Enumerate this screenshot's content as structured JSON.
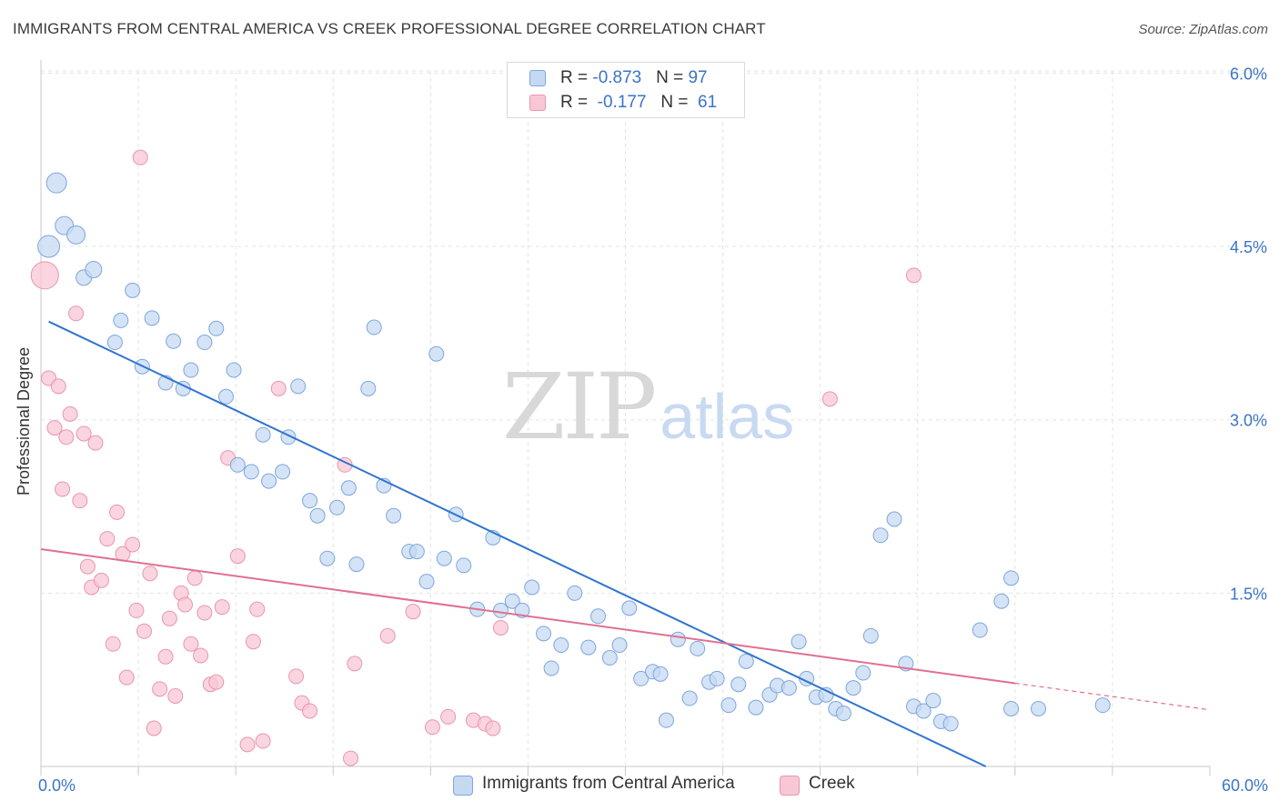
{
  "header": {
    "title": "IMMIGRANTS FROM CENTRAL AMERICA VS CREEK PROFESSIONAL DEGREE CORRELATION CHART",
    "source": "Source: ZipAtlas.com"
  },
  "watermark": {
    "zip": "ZIP",
    "atlas": "atlas"
  },
  "legend_top": [
    {
      "r_label": "R = ",
      "r_value": "-0.873",
      "n_label": "N = ",
      "n_value": "97"
    },
    {
      "r_label": "R = ",
      "r_value": " -0.177",
      "n_label": "N = ",
      "n_value": " 61"
    }
  ],
  "colors": {
    "blue_fill": "#c5d9f3",
    "blue_stroke": "#7ea6dc",
    "blue_line": "#2e74d0",
    "pink_fill": "#f8c7d6",
    "pink_stroke": "#e995b0",
    "pink_line": "#e0708f",
    "axis_label": "#3a74c9",
    "grid": "#e3e3e3"
  },
  "chart_data": {
    "type": "scatter",
    "title": "IMMIGRANTS FROM CENTRAL AMERICA VS CREEK PROFESSIONAL DEGREE CORRELATION CHART",
    "xlabel": "",
    "ylabel": "Professional Degree",
    "xlim": [
      0,
      60
    ],
    "ylim": [
      0,
      6.25
    ],
    "x_tick_labels": [
      "0.0%",
      "60.0%"
    ],
    "y_ticks": [
      1.5,
      3.0,
      4.5,
      6.0
    ],
    "y_tick_labels": [
      "1.5%",
      "3.0%",
      "4.5%",
      "6.0%"
    ],
    "grid": true,
    "legend_position": "bottom",
    "series": [
      {
        "name": "Immigrants from Central America",
        "r": -0.873,
        "n": 97,
        "trend": {
          "x": [
            0.4,
            48.5
          ],
          "y": [
            3.85,
            0.0
          ]
        },
        "points": [
          [
            0.4,
            4.5,
            24
          ],
          [
            0.8,
            5.05,
            22
          ],
          [
            1.2,
            4.68,
            20
          ],
          [
            1.8,
            4.6,
            20
          ],
          [
            2.2,
            4.23,
            17
          ],
          [
            2.7,
            4.3,
            18
          ],
          [
            3.8,
            3.67,
            16
          ],
          [
            4.1,
            3.86,
            16
          ],
          [
            4.7,
            4.12,
            16
          ],
          [
            5.2,
            3.46,
            16
          ],
          [
            5.7,
            3.88,
            16
          ],
          [
            6.4,
            3.32,
            16
          ],
          [
            6.8,
            3.68,
            16
          ],
          [
            7.3,
            3.27,
            16
          ],
          [
            7.7,
            3.43,
            16
          ],
          [
            8.4,
            3.67,
            16
          ],
          [
            9.0,
            3.79,
            16
          ],
          [
            9.5,
            3.2,
            16
          ],
          [
            9.9,
            3.43,
            16
          ],
          [
            10.1,
            2.61,
            16
          ],
          [
            10.8,
            2.55,
            16
          ],
          [
            11.4,
            2.87,
            16
          ],
          [
            11.7,
            2.47,
            16
          ],
          [
            12.4,
            2.55,
            16
          ],
          [
            12.7,
            2.85,
            16
          ],
          [
            13.2,
            3.29,
            16
          ],
          [
            13.8,
            2.3,
            16
          ],
          [
            14.2,
            2.17,
            16
          ],
          [
            14.7,
            1.8,
            16
          ],
          [
            15.2,
            2.24,
            16
          ],
          [
            15.8,
            2.41,
            16
          ],
          [
            16.2,
            1.75,
            16
          ],
          [
            16.8,
            3.27,
            16
          ],
          [
            17.1,
            3.8,
            16
          ],
          [
            17.6,
            2.43,
            16
          ],
          [
            18.1,
            2.17,
            16
          ],
          [
            18.9,
            1.86,
            16
          ],
          [
            19.3,
            1.86,
            16
          ],
          [
            19.8,
            1.6,
            16
          ],
          [
            20.3,
            3.57,
            16
          ],
          [
            20.7,
            1.8,
            16
          ],
          [
            21.3,
            2.18,
            16
          ],
          [
            21.7,
            1.74,
            16
          ],
          [
            22.4,
            1.36,
            16
          ],
          [
            23.2,
            1.98,
            16
          ],
          [
            23.6,
            1.35,
            16
          ],
          [
            24.2,
            1.43,
            16
          ],
          [
            24.7,
            1.35,
            16
          ],
          [
            25.2,
            1.55,
            16
          ],
          [
            25.8,
            1.15,
            16
          ],
          [
            26.2,
            0.85,
            16
          ],
          [
            26.7,
            1.05,
            16
          ],
          [
            27.4,
            1.5,
            16
          ],
          [
            28.1,
            1.03,
            16
          ],
          [
            28.6,
            1.3,
            16
          ],
          [
            29.2,
            0.94,
            16
          ],
          [
            29.7,
            1.05,
            16
          ],
          [
            30.2,
            1.37,
            16
          ],
          [
            30.8,
            0.76,
            16
          ],
          [
            31.4,
            0.82,
            16
          ],
          [
            31.8,
            0.8,
            16
          ],
          [
            32.1,
            0.4,
            16
          ],
          [
            32.7,
            1.1,
            16
          ],
          [
            33.3,
            0.59,
            16
          ],
          [
            33.7,
            1.02,
            16
          ],
          [
            34.3,
            0.73,
            16
          ],
          [
            34.7,
            0.76,
            16
          ],
          [
            35.3,
            0.53,
            16
          ],
          [
            35.8,
            0.71,
            16
          ],
          [
            36.2,
            0.91,
            16
          ],
          [
            36.7,
            0.51,
            16
          ],
          [
            37.4,
            0.62,
            16
          ],
          [
            37.8,
            0.7,
            16
          ],
          [
            38.4,
            0.68,
            16
          ],
          [
            38.9,
            1.08,
            16
          ],
          [
            39.3,
            0.76,
            16
          ],
          [
            39.8,
            0.6,
            16
          ],
          [
            40.3,
            0.62,
            16
          ],
          [
            40.8,
            0.5,
            16
          ],
          [
            41.2,
            0.46,
            16
          ],
          [
            41.7,
            0.68,
            16
          ],
          [
            42.2,
            0.81,
            16
          ],
          [
            42.6,
            1.13,
            16
          ],
          [
            43.1,
            2.0,
            16
          ],
          [
            43.8,
            2.14,
            16
          ],
          [
            44.4,
            0.89,
            16
          ],
          [
            44.8,
            0.52,
            16
          ],
          [
            45.3,
            0.48,
            16
          ],
          [
            45.8,
            0.57,
            16
          ],
          [
            46.2,
            0.39,
            16
          ],
          [
            46.7,
            0.37,
            16
          ],
          [
            48.2,
            1.18,
            16
          ],
          [
            49.3,
            1.43,
            16
          ],
          [
            49.8,
            0.5,
            16
          ],
          [
            49.8,
            1.63,
            16
          ],
          [
            51.2,
            0.5,
            16
          ],
          [
            54.5,
            0.53,
            16
          ]
        ]
      },
      {
        "name": "Creek",
        "r": -0.177,
        "n": 61,
        "trend": {
          "x": [
            0.0,
            50.0
          ],
          "y": [
            1.88,
            0.72
          ]
        },
        "trend_ext": {
          "x": [
            50.0,
            60.0
          ],
          "y": [
            0.72,
            0.49
          ]
        },
        "points": [
          [
            0.2,
            4.25,
            30
          ],
          [
            0.4,
            3.36,
            16
          ],
          [
            0.7,
            2.93,
            16
          ],
          [
            0.9,
            3.29,
            16
          ],
          [
            1.1,
            2.4,
            16
          ],
          [
            1.3,
            2.85,
            16
          ],
          [
            1.5,
            3.05,
            16
          ],
          [
            1.8,
            3.92,
            16
          ],
          [
            2.0,
            2.3,
            16
          ],
          [
            2.2,
            2.88,
            16
          ],
          [
            2.4,
            1.73,
            16
          ],
          [
            2.6,
            1.55,
            16
          ],
          [
            2.8,
            2.8,
            16
          ],
          [
            3.1,
            1.61,
            16
          ],
          [
            3.4,
            1.97,
            16
          ],
          [
            3.7,
            1.06,
            16
          ],
          [
            3.9,
            2.2,
            16
          ],
          [
            4.2,
            1.84,
            16
          ],
          [
            4.4,
            0.77,
            16
          ],
          [
            4.7,
            1.92,
            16
          ],
          [
            4.9,
            1.35,
            16
          ],
          [
            5.1,
            5.27,
            16
          ],
          [
            5.3,
            1.17,
            16
          ],
          [
            5.6,
            1.67,
            16
          ],
          [
            5.8,
            0.33,
            16
          ],
          [
            6.1,
            0.67,
            16
          ],
          [
            6.4,
            0.95,
            16
          ],
          [
            6.6,
            1.28,
            16
          ],
          [
            6.9,
            0.61,
            16
          ],
          [
            7.2,
            1.5,
            16
          ],
          [
            7.4,
            1.4,
            16
          ],
          [
            7.7,
            1.06,
            16
          ],
          [
            7.9,
            1.63,
            16
          ],
          [
            8.2,
            0.96,
            16
          ],
          [
            8.4,
            1.33,
            16
          ],
          [
            8.7,
            0.71,
            16
          ],
          [
            9.0,
            0.73,
            16
          ],
          [
            9.3,
            1.38,
            16
          ],
          [
            9.6,
            2.67,
            16
          ],
          [
            10.1,
            1.82,
            16
          ],
          [
            10.6,
            0.19,
            16
          ],
          [
            10.9,
            1.08,
            16
          ],
          [
            11.1,
            1.36,
            16
          ],
          [
            11.4,
            0.22,
            16
          ],
          [
            12.2,
            3.27,
            16
          ],
          [
            13.1,
            0.78,
            16
          ],
          [
            13.4,
            0.55,
            16
          ],
          [
            13.8,
            0.48,
            16
          ],
          [
            15.6,
            2.61,
            16
          ],
          [
            15.9,
            0.07,
            16
          ],
          [
            16.1,
            0.89,
            16
          ],
          [
            17.8,
            1.13,
            16
          ],
          [
            19.1,
            1.34,
            16
          ],
          [
            20.1,
            0.34,
            16
          ],
          [
            20.9,
            0.43,
            16
          ],
          [
            22.2,
            0.4,
            16
          ],
          [
            22.8,
            0.37,
            16
          ],
          [
            23.2,
            0.33,
            16
          ],
          [
            23.6,
            1.2,
            16
          ],
          [
            40.5,
            3.18,
            16
          ],
          [
            44.8,
            4.25,
            16
          ]
        ]
      }
    ]
  }
}
